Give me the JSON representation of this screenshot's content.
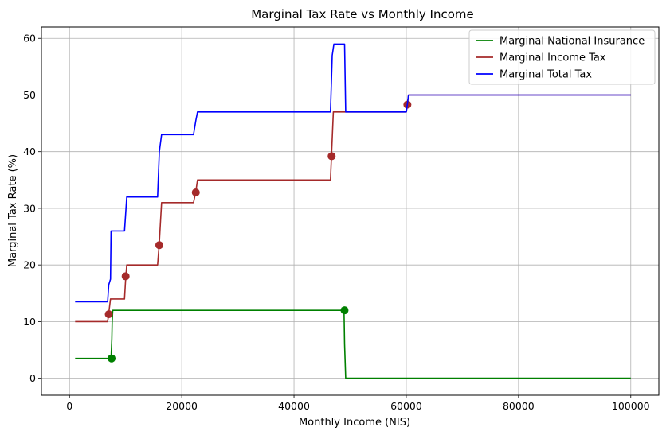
{
  "chart_data": {
    "type": "line",
    "title": "Marginal Tax Rate vs Monthly Income",
    "xlabel": "Monthly Income (NIS)",
    "ylabel": "Marginal Tax Rate (%)",
    "xlim": [
      -5000,
      105000
    ],
    "ylim": [
      -3.0,
      62.0
    ],
    "xticks": [
      0,
      20000,
      40000,
      60000,
      80000,
      100000
    ],
    "yticks": [
      0,
      10,
      20,
      30,
      40,
      50,
      60
    ],
    "grid": true,
    "legend_position": "top-right",
    "series": [
      {
        "name": "Marginal National Insurance",
        "color": "#008000",
        "x": [
          1000,
          7400,
          7550,
          7600,
          7700,
          48900,
          49000,
          49200,
          100000
        ],
        "y": [
          3.5,
          3.5,
          7,
          10,
          12,
          12,
          6,
          0,
          0
        ],
        "markers": [
          [
            7500,
            3.5
          ],
          [
            49000,
            12
          ]
        ]
      },
      {
        "name": "Marginal Income Tax",
        "color": "#a52a2a",
        "x": [
          1000,
          6800,
          7000,
          7300,
          9800,
          10000,
          10200,
          15700,
          16000,
          16400,
          22100,
          22500,
          22800,
          46500,
          46700,
          47000,
          60000,
          60200,
          60400,
          100000
        ],
        "y": [
          10,
          10,
          11.5,
          14,
          14,
          17.5,
          20,
          20,
          24,
          31,
          31,
          33,
          35,
          35,
          40,
          47,
          47,
          48.5,
          50,
          50
        ],
        "markers": [
          [
            7000,
            11.3
          ],
          [
            10000,
            18
          ],
          [
            16000,
            23.5
          ],
          [
            22500,
            32.8
          ],
          [
            46700,
            39.2
          ],
          [
            60200,
            48.3
          ]
        ]
      },
      {
        "name": "Marginal Total Tax",
        "color": "#0000ff",
        "x": [
          1000,
          6800,
          7000,
          7300,
          7400,
          9800,
          10000,
          10200,
          15700,
          16000,
          16400,
          22100,
          22500,
          22800,
          46500,
          46800,
          47100,
          49000,
          49200,
          60000,
          60200,
          60400,
          100000
        ],
        "y": [
          13.5,
          13.5,
          16.5,
          17.5,
          26,
          26,
          29,
          32,
          32,
          40,
          43,
          43,
          45.5,
          47,
          47,
          57,
          59,
          59,
          47,
          47,
          48.5,
          50,
          50
        ],
        "markers": []
      }
    ]
  }
}
